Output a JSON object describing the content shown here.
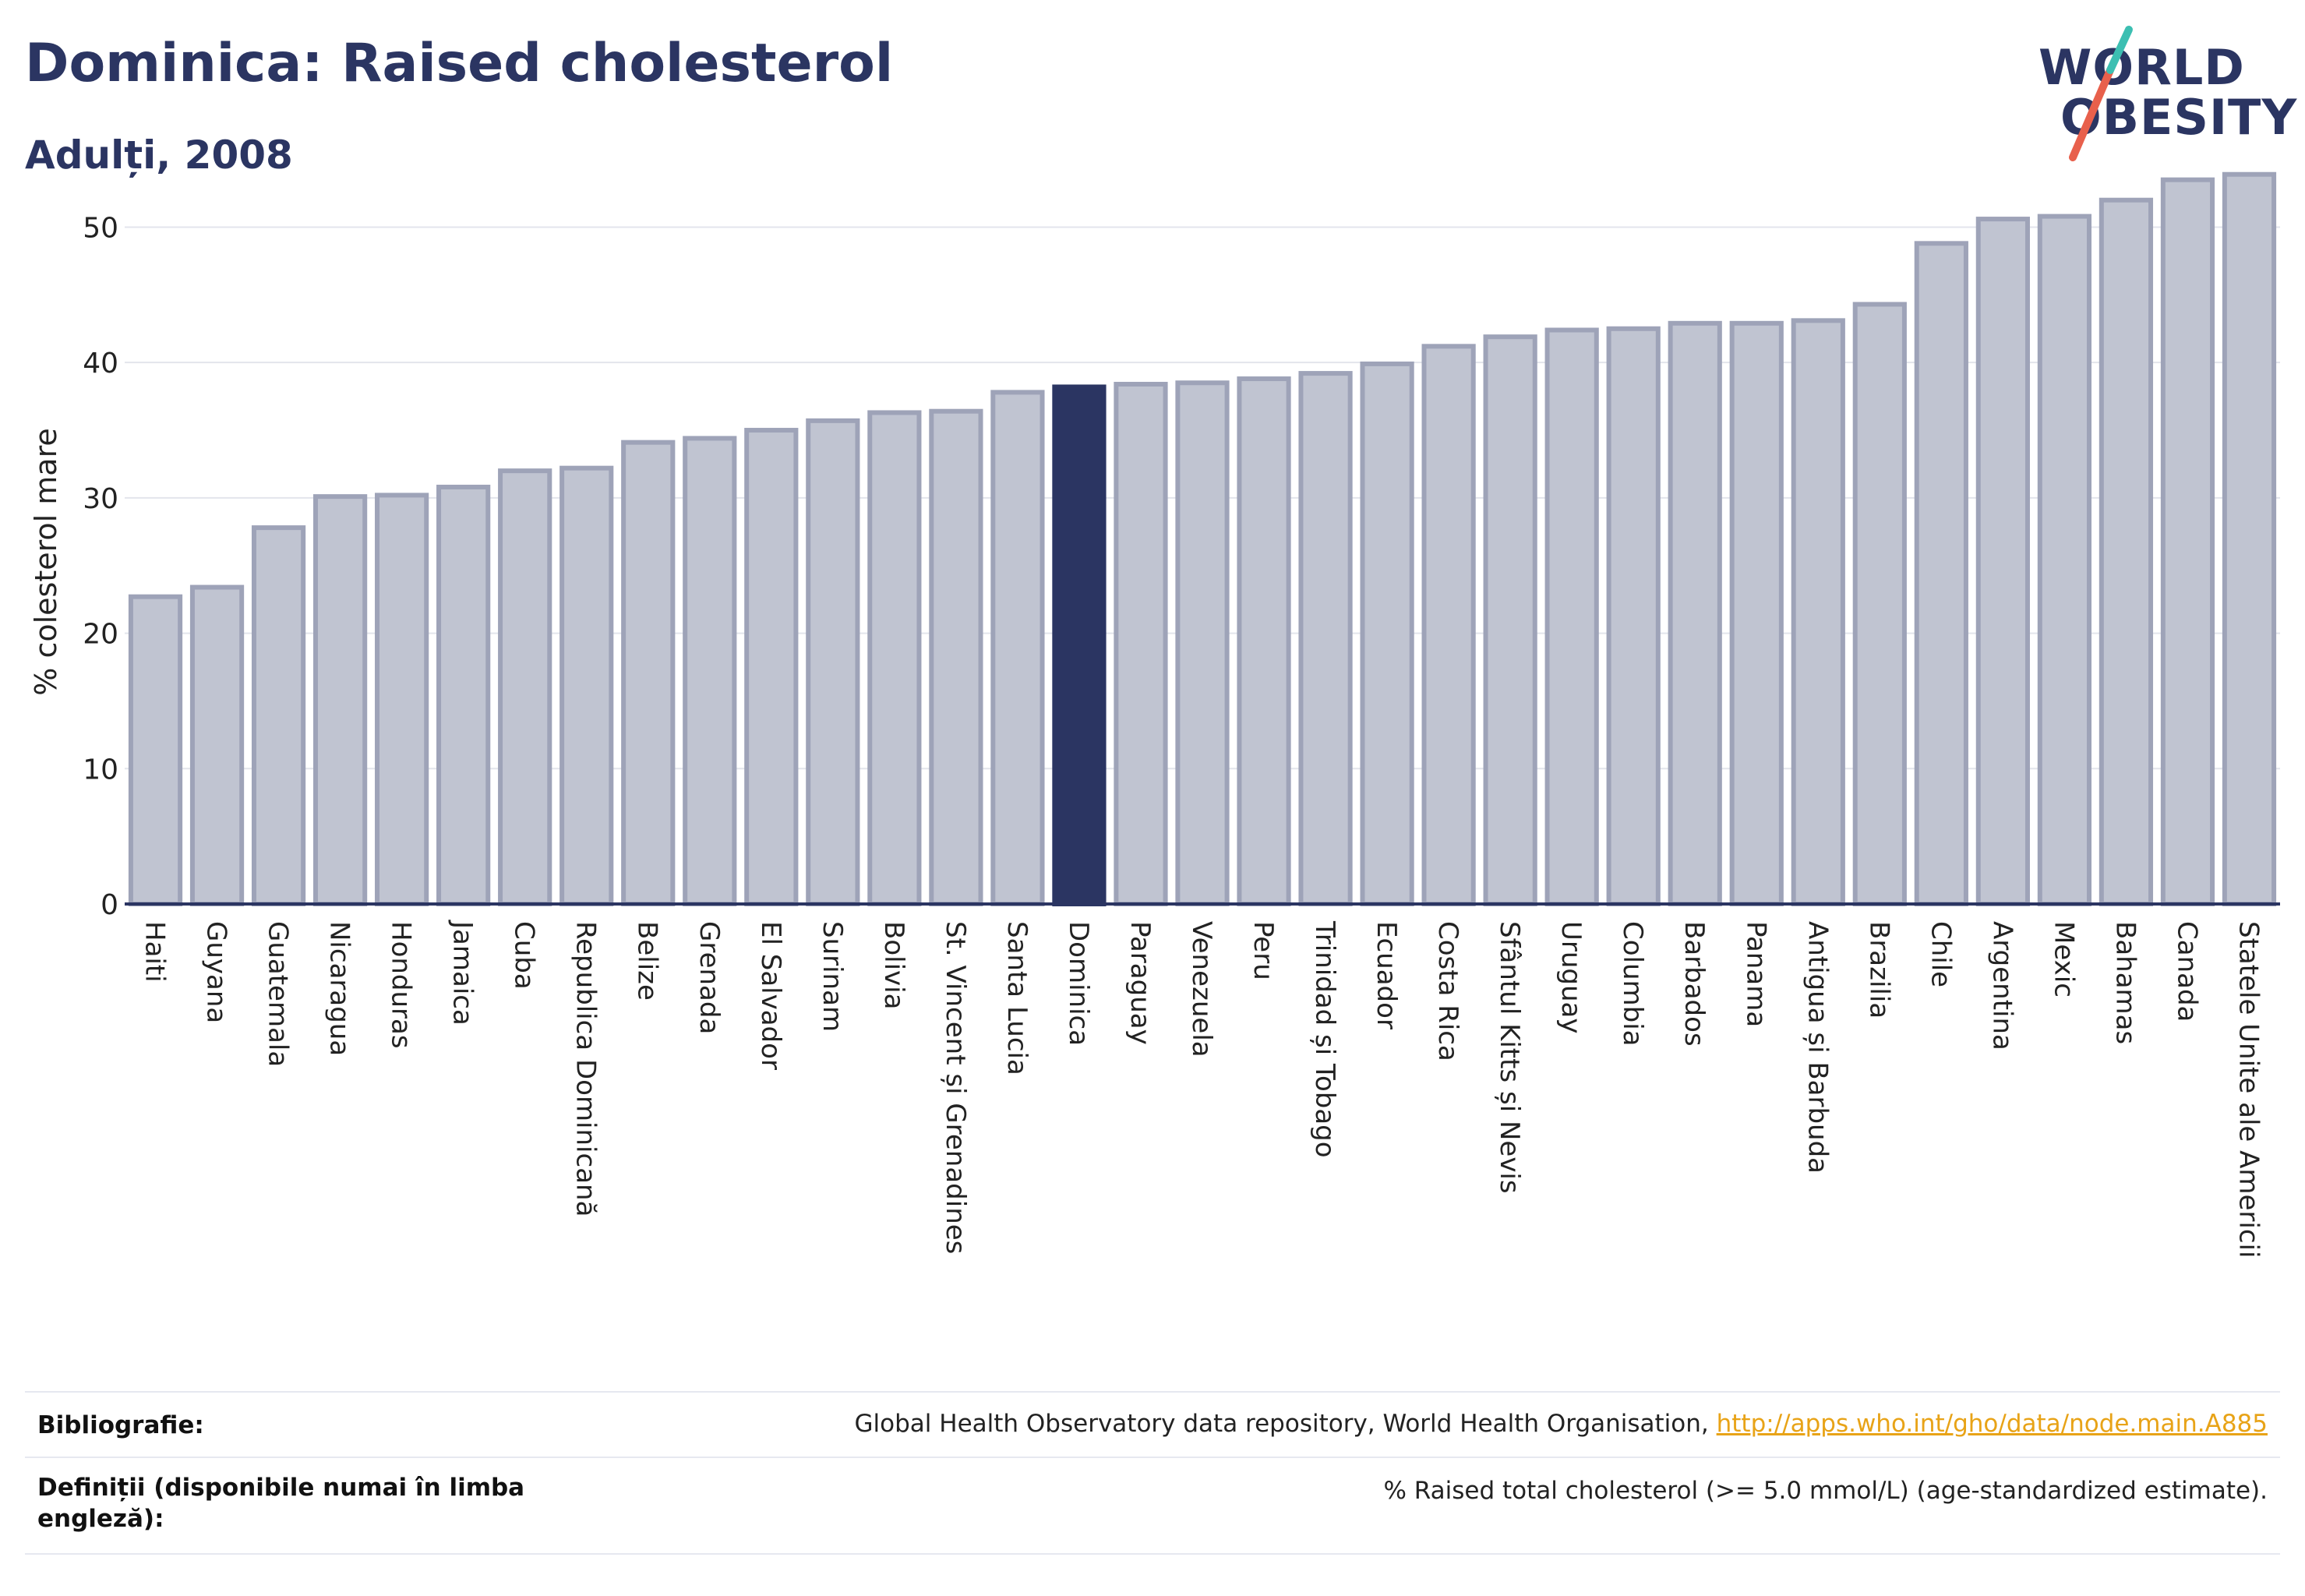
{
  "header": {
    "title": "Dominica: Raised cholesterol",
    "subtitle": "Adulți, 2008"
  },
  "logo": {
    "line1": "WORLD",
    "line2": "OBESITY",
    "accent_colors": [
      "#e8604c",
      "#3cbfb2"
    ]
  },
  "colors": {
    "bar_default": "#c0c4d1",
    "bar_stroke": "#9ea3b8",
    "bar_highlight": "#2b3562",
    "text": "#2b3562",
    "link": "#e8a317"
  },
  "chart_data": {
    "type": "bar",
    "ylabel": "% colesterol mare",
    "ylim": [
      0,
      54
    ],
    "yticks": [
      0,
      10,
      20,
      30,
      40,
      50
    ],
    "grid": true,
    "highlight": "Dominica",
    "categories": [
      "Haiti",
      "Guyana",
      "Guatemala",
      "Nicaragua",
      "Honduras",
      "Jamaica",
      "Cuba",
      "Republica Dominicană",
      "Belize",
      "Grenada",
      "El Salvador",
      "Surinam",
      "Bolivia",
      "St. Vincent și Grenadines",
      "Santa Lucia",
      "Dominica",
      "Paraguay",
      "Venezuela",
      "Peru",
      "Trinidad și Tobago",
      "Ecuador",
      "Costa Rica",
      "Sfântul Kitts și Nevis",
      "Uruguay",
      "Columbia",
      "Barbados",
      "Panama",
      "Antigua și Barbuda",
      "Brazilia",
      "Chile",
      "Argentina",
      "Mexic",
      "Bahamas",
      "Canada",
      "Statele Unite ale Americii"
    ],
    "values": [
      22.7,
      23.4,
      27.8,
      30.1,
      30.2,
      30.8,
      32.0,
      32.2,
      34.1,
      34.4,
      35.0,
      35.7,
      36.3,
      36.4,
      37.8,
      38.2,
      38.4,
      38.5,
      38.8,
      39.2,
      39.9,
      41.2,
      41.9,
      42.4,
      42.5,
      42.9,
      42.9,
      43.1,
      44.3,
      48.8,
      50.6,
      50.8,
      52.0,
      53.5,
      53.9
    ]
  },
  "footer": {
    "bibliography_label": "Bibliografie:",
    "bibliography_text": "Global Health Observatory data repository, World Health Organisation, ",
    "bibliography_link": "http://apps.who.int/gho/data/node.main.A885",
    "definitions_label": "Definiții (disponibile numai în limba engleză):",
    "definitions_text": "% Raised total cholesterol (>= 5.0 mmol/L) (age-standardized estimate)."
  }
}
